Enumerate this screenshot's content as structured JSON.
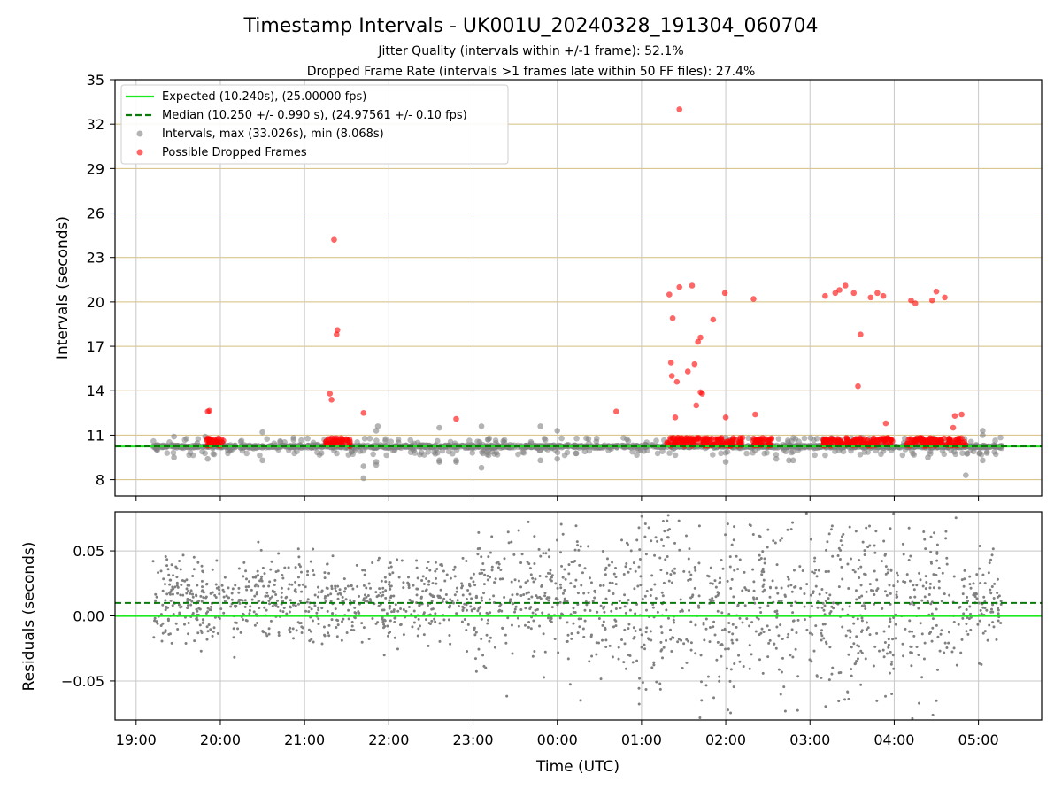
{
  "chart_data": [
    {
      "type": "scatter",
      "title": "Timestamp Intervals - UK001U_20240328_191304_060704",
      "subtitle_lines": [
        "Jitter Quality (intervals within +/-1 frame): 52.1%",
        "Dropped Frame Rate (intervals >1 frames late within 50 FF files): 27.4%"
      ],
      "ylabel": "Intervals (seconds)",
      "ylim": [
        6.9,
        35
      ],
      "yticks": [
        8,
        11,
        14,
        17,
        20,
        23,
        26,
        29,
        32,
        35
      ],
      "grid": "on",
      "legend_placement": "top-left",
      "legend": [
        "Expected (10.240s), (25.00000 fps)",
        "Median (10.250 +/- 0.990 s), (24.97561 +/- 0.10 fps)",
        "Intervals, max (33.026s), min (8.068s)",
        "Possible Dropped Frames"
      ],
      "expected_line": 10.24,
      "median_line": 10.25,
      "intervals_range": [
        19.2,
        5.28
      ],
      "dropped_frames": [
        [
          19.85,
          12.6
        ],
        [
          19.87,
          12.65
        ],
        [
          21.3,
          13.8
        ],
        [
          21.32,
          13.4
        ],
        [
          21.35,
          24.2
        ],
        [
          21.38,
          17.8
        ],
        [
          21.39,
          18.1
        ],
        [
          21.7,
          12.5
        ],
        [
          22.8,
          12.1
        ],
        [
          24.7,
          12.6
        ],
        [
          25.33,
          20.5
        ],
        [
          25.37,
          18.9
        ],
        [
          25.4,
          12.2
        ],
        [
          25.35,
          15.9
        ],
        [
          25.36,
          15.0
        ],
        [
          25.42,
          14.6
        ],
        [
          25.45,
          21.0
        ],
        [
          25.45,
          33.0
        ],
        [
          25.55,
          15.3
        ],
        [
          25.6,
          21.1
        ],
        [
          25.63,
          15.8
        ],
        [
          25.67,
          17.3
        ],
        [
          25.7,
          17.6
        ],
        [
          25.7,
          13.9
        ],
        [
          25.72,
          13.8
        ],
        [
          25.65,
          13.0
        ],
        [
          25.85,
          18.8
        ],
        [
          26.0,
          12.2
        ],
        [
          25.99,
          20.6
        ],
        [
          26.33,
          20.2
        ],
        [
          26.35,
          12.4
        ],
        [
          27.18,
          20.4
        ],
        [
          27.3,
          20.6
        ],
        [
          27.35,
          20.8
        ],
        [
          27.42,
          21.1
        ],
        [
          27.52,
          20.6
        ],
        [
          27.57,
          14.3
        ],
        [
          27.6,
          17.8
        ],
        [
          27.72,
          20.3
        ],
        [
          27.8,
          20.6
        ],
        [
          27.87,
          20.4
        ],
        [
          27.9,
          11.8
        ],
        [
          28.2,
          20.1
        ],
        [
          28.25,
          19.9
        ],
        [
          28.45,
          20.1
        ],
        [
          28.5,
          20.7
        ],
        [
          28.6,
          20.3
        ],
        [
          28.7,
          11.5
        ],
        [
          28.72,
          12.3
        ],
        [
          28.8,
          12.4
        ]
      ],
      "dropped_clusters": [
        [
          19.82,
          20.05
        ],
        [
          21.25,
          21.55
        ],
        [
          25.3,
          26.2
        ],
        [
          26.3,
          26.55
        ],
        [
          27.15,
          28.0
        ],
        [
          28.15,
          28.85
        ]
      ],
      "gray_outliers": [
        [
          19.45,
          10.9
        ],
        [
          19.45,
          9.5
        ],
        [
          19.82,
          10.9
        ],
        [
          19.85,
          9.4
        ],
        [
          20.5,
          11.2
        ],
        [
          20.5,
          9.3
        ],
        [
          21.2,
          9.8
        ],
        [
          21.7,
          8.9
        ],
        [
          21.7,
          8.1
        ],
        [
          21.85,
          9.2
        ],
        [
          21.85,
          9.0
        ],
        [
          21.85,
          11.3
        ],
        [
          21.87,
          11.6
        ],
        [
          22.6,
          9.3
        ],
        [
          22.6,
          9.2
        ],
        [
          22.6,
          11.5
        ],
        [
          22.8,
          9.3
        ],
        [
          22.8,
          9.2
        ],
        [
          23.1,
          8.8
        ],
        [
          23.1,
          11.6
        ],
        [
          23.8,
          11.6
        ],
        [
          23.8,
          9.3
        ],
        [
          24.0,
          11.3
        ],
        [
          24.0,
          9.4
        ],
        [
          26.0,
          9.2
        ],
        [
          26.6,
          9.4
        ],
        [
          26.75,
          9.3
        ],
        [
          26.8,
          9.3
        ],
        [
          28.85,
          8.3
        ],
        [
          29.05,
          11.3
        ],
        [
          29.05,
          11.0
        ],
        [
          29.05,
          9.3
        ],
        [
          29.1,
          9.8
        ],
        [
          28.4,
          9.5
        ]
      ],
      "residual_density": "dense noise between -0.08 and 0.08"
    },
    {
      "type": "scatter",
      "ylabel": "Residuals (seconds)",
      "xlabel": "Time (UTC)",
      "ylim": [
        -0.08,
        0.08
      ],
      "yticks": [
        -0.05,
        0.0,
        0.05
      ],
      "ytick_labels": [
        "−0.05",
        "0.00",
        "0.05"
      ],
      "xlim": [
        18.75,
        29.75
      ],
      "xticks": [
        19,
        20,
        21,
        22,
        23,
        24,
        25,
        26,
        27,
        28,
        29
      ],
      "xtick_labels": [
        "19:00",
        "20:00",
        "21:00",
        "22:00",
        "23:00",
        "00:00",
        "01:00",
        "02:00",
        "03:00",
        "04:00",
        "05:00"
      ],
      "expected_line": 0.0,
      "median_line": 0.01,
      "grid": "on"
    }
  ],
  "colors": {
    "expected": "#1ee81e",
    "median": "#0a7a0a",
    "intervals": "#808080",
    "dropped": "#ff0000",
    "hgrid": "#d4be7e",
    "vgrid": "#c8c8c8"
  }
}
